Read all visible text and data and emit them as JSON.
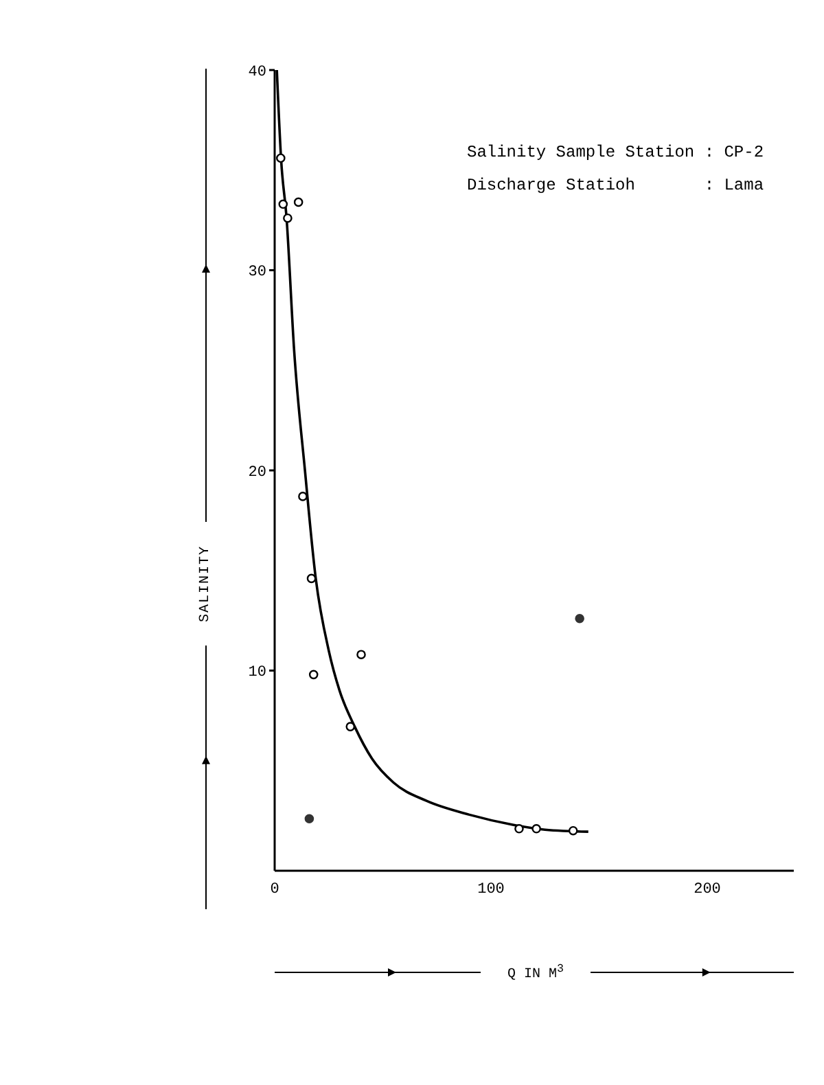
{
  "chart_data": {
    "type": "scatter",
    "xlabel": "Q IN M$^{3}$",
    "ylabel": "SALINITY",
    "annotations": [
      "Salinity Sample Station : CP-2",
      "Discharge Statioh       : Lama"
    ],
    "xlim": [
      0,
      240
    ],
    "xticks": [
      0,
      100,
      200
    ],
    "ylim": [
      0,
      40
    ],
    "yticks": [
      10,
      20,
      30,
      40
    ],
    "grid": false,
    "legend": false,
    "marker": "circle",
    "series": [
      {
        "type": "scatter",
        "color": "#000000",
        "x": [
          2.8,
          3.9,
          6,
          11,
          13,
          17,
          18,
          35,
          40,
          113,
          121,
          138
        ],
        "values": [
          35.6,
          33.3,
          32.6,
          33.4,
          18.7,
          14.6,
          9.8,
          7.2,
          10.8,
          2.1,
          2.1,
          2.0
        ]
      },
      {
        "type": "scatter",
        "color": "#333333",
        "x": [
          16,
          141
        ],
        "values": [
          2.6,
          12.6
        ]
      },
      {
        "type": "line",
        "color": "#000000",
        "marker": "none",
        "line_style": "solid",
        "x": [
          1,
          3,
          5.5,
          9,
          14,
          19,
          25,
          30,
          37,
          45,
          55,
          70,
          90,
          110,
          125,
          145
        ],
        "values": [
          40,
          35.5,
          32.6,
          26,
          20,
          14.6,
          11,
          9,
          7.2,
          5.6,
          4.4,
          3.5,
          2.8,
          2.3,
          2.05,
          1.95
        ]
      }
    ]
  }
}
